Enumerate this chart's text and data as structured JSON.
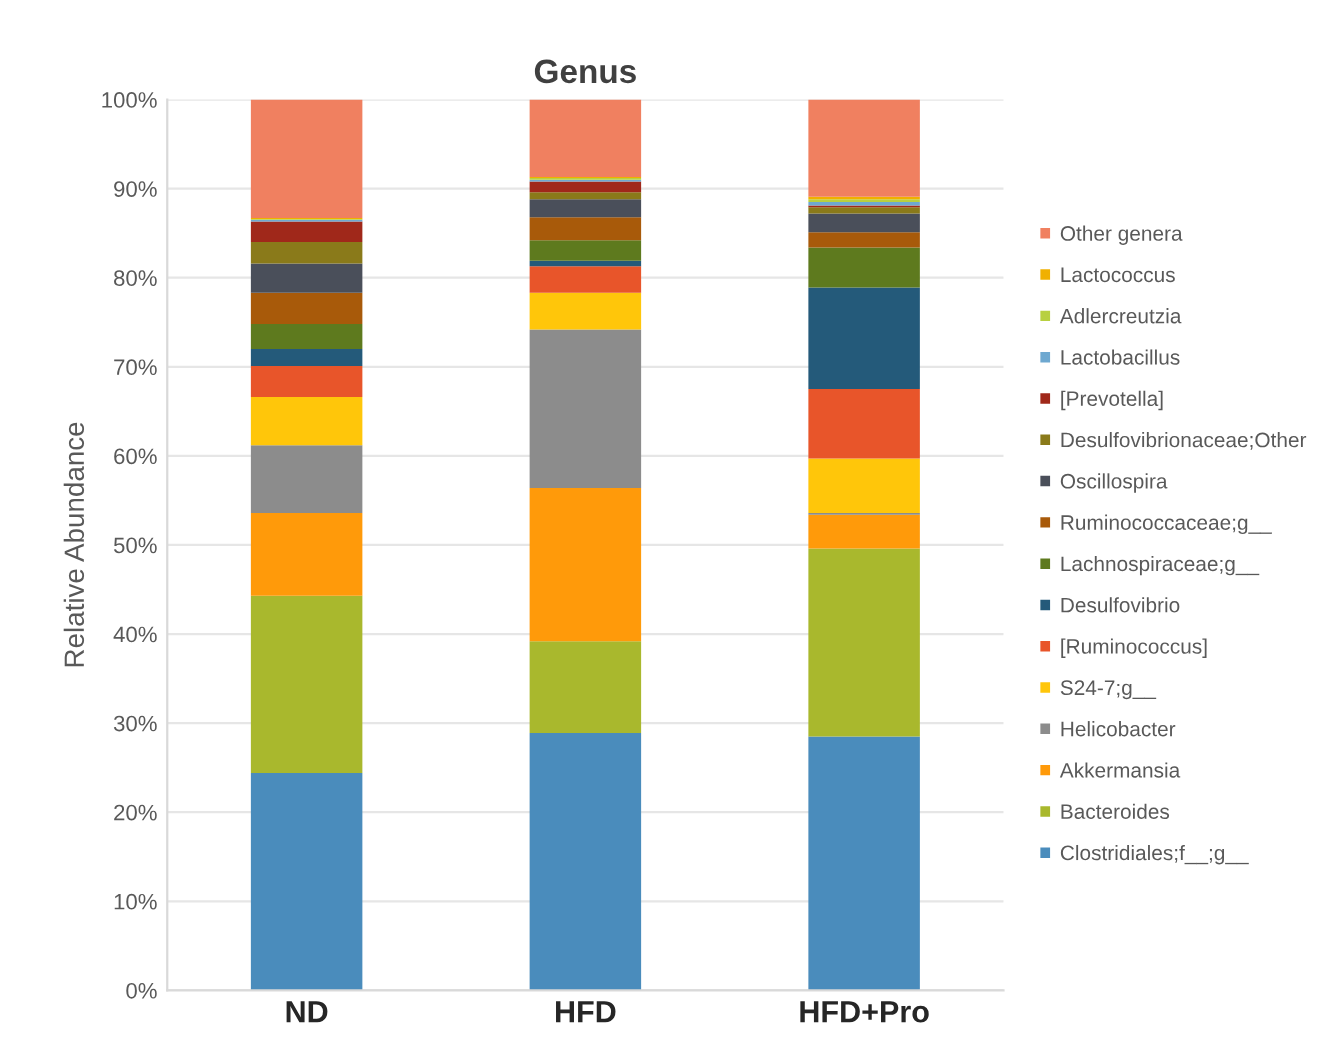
{
  "chart_data": {
    "type": "bar",
    "title": "Genus",
    "ylabel": "Relative Abundance",
    "stacked": true,
    "categories": [
      "ND",
      "HFD",
      "HFD+Pro"
    ],
    "series": [
      {
        "name": "Clostridiales;f__;g__",
        "color": "#4a8cbc",
        "values": [
          24.4,
          28.9,
          28.5
        ]
      },
      {
        "name": "Bacteroides",
        "color": "#a9b82d",
        "values": [
          19.9,
          10.3,
          21.1
        ]
      },
      {
        "name": "Akkermansia",
        "color": "#ff9a0a",
        "values": [
          9.3,
          17.2,
          3.8
        ]
      },
      {
        "name": "Helicobacter",
        "color": "#8c8c8c",
        "values": [
          7.6,
          17.8,
          0.2
        ]
      },
      {
        "name": "S24-7;g__",
        "color": "#ffc60a",
        "values": [
          5.4,
          4.1,
          6.1
        ]
      },
      {
        "name": "[Ruminococcus]",
        "color": "#e8552a",
        "values": [
          3.5,
          3.0,
          7.8
        ]
      },
      {
        "name": "Desulfovibrio",
        "color": "#245a7a",
        "values": [
          1.9,
          0.6,
          11.4
        ]
      },
      {
        "name": "Lachnospiraceae;g__",
        "color": "#5e7a1e",
        "values": [
          2.8,
          2.3,
          4.5
        ]
      },
      {
        "name": "Ruminococcaceae;g__",
        "color": "#a85a0a",
        "values": [
          3.5,
          2.6,
          1.7
        ]
      },
      {
        "name": "Oscillospira",
        "color": "#4a4f5a",
        "values": [
          3.3,
          2.0,
          2.1
        ]
      },
      {
        "name": "Desulfovibrionaceae;Other",
        "color": "#8a7a1a",
        "values": [
          2.4,
          0.8,
          0.7
        ]
      },
      {
        "name": "[Prevotella]",
        "color": "#a0281a",
        "values": [
          2.3,
          1.2,
          0.2
        ]
      },
      {
        "name": "Lactobacillus",
        "color": "#6ea8d0",
        "values": [
          0.2,
          0.2,
          0.4
        ]
      },
      {
        "name": "Adlercreutzia",
        "color": "#b8d040",
        "values": [
          0.1,
          0.2,
          0.3
        ]
      },
      {
        "name": "Lactococcus",
        "color": "#f0b000",
        "values": [
          0.1,
          0.1,
          0.3
        ]
      },
      {
        "name": "Other genera",
        "color": "#f08060",
        "values": [
          13.3,
          8.7,
          10.9
        ]
      }
    ],
    "ylim": [
      0,
      100
    ],
    "yticks": [
      {
        "value": 0,
        "label": "0%"
      },
      {
        "value": 10,
        "label": "10%"
      },
      {
        "value": 20,
        "label": "20%"
      },
      {
        "value": 30,
        "label": "30%"
      },
      {
        "value": 40,
        "label": "40%"
      },
      {
        "value": 50,
        "label": "50%"
      },
      {
        "value": 60,
        "label": "60%"
      },
      {
        "value": 70,
        "label": "70%"
      },
      {
        "value": 80,
        "label": "80%"
      },
      {
        "value": 90,
        "label": "90%"
      },
      {
        "value": 100,
        "label": "100%"
      }
    ],
    "grid": "y",
    "legend": "right"
  }
}
